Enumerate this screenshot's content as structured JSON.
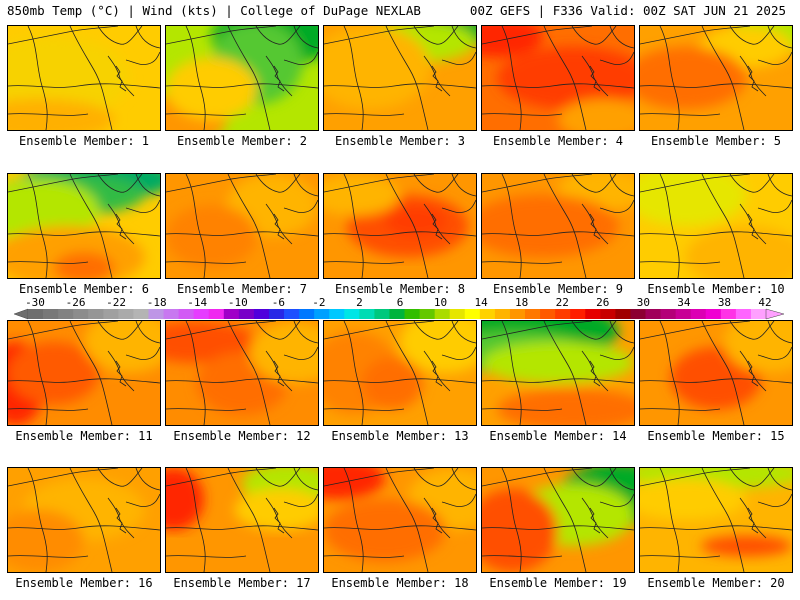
{
  "header": {
    "left": "850mb Temp (°C) | Wind (kts) | College of DuPage NEXLAB",
    "right": "00Z GEFS | F336 Valid: 00Z SAT JUN 21 2025"
  },
  "members": [
    {
      "label": "Ensemble Member: 1",
      "base": "#ffcc00",
      "blobs": [
        [
          "#f7d200",
          0.3,
          0.5,
          0.5,
          0.4
        ],
        [
          "#ffb000",
          0.2,
          0.9,
          0.5,
          0.2
        ]
      ]
    },
    {
      "label": "Ensemble Member: 2",
      "base": "#b4e600",
      "blobs": [
        [
          "#00aa28",
          0.7,
          0.1,
          0.4,
          0.3
        ],
        [
          "#55c832",
          0.6,
          0.35,
          0.3,
          0.4
        ],
        [
          "#ff9600",
          0.1,
          0.9,
          0.3,
          0.25
        ],
        [
          "#ffcc00",
          0.3,
          0.6,
          0.3,
          0.3
        ]
      ]
    },
    {
      "label": "Ensemble Member: 3",
      "base": "#ffa000",
      "blobs": [
        [
          "#00aa28",
          0.85,
          0.05,
          0.3,
          0.15
        ],
        [
          "#b4e600",
          0.6,
          0.15,
          0.4,
          0.2
        ],
        [
          "#ffb400",
          0.3,
          0.4,
          0.4,
          0.4
        ]
      ]
    },
    {
      "label": "Ensemble Member: 4",
      "base": "#ff6e00",
      "blobs": [
        [
          "#ff2800",
          0.1,
          0.1,
          0.3,
          0.2
        ],
        [
          "#ff3c00",
          0.6,
          0.5,
          0.5,
          0.3
        ],
        [
          "#ffa000",
          0.8,
          0.9,
          0.3,
          0.2
        ]
      ]
    },
    {
      "label": "Ensemble Member: 5",
      "base": "#ffa000",
      "blobs": [
        [
          "#b4e600",
          0.9,
          0.05,
          0.3,
          0.2
        ],
        [
          "#ffcc00",
          0.7,
          0.2,
          0.3,
          0.2
        ],
        [
          "#ff6e00",
          0.3,
          0.5,
          0.4,
          0.3
        ]
      ]
    },
    {
      "label": "Ensemble Member: 6",
      "base": "#ffcc00",
      "blobs": [
        [
          "#00aa64",
          0.6,
          0.05,
          0.5,
          0.2
        ],
        [
          "#33bb44",
          0.4,
          0.2,
          0.5,
          0.2
        ],
        [
          "#b4e600",
          0.2,
          0.35,
          0.4,
          0.3
        ],
        [
          "#ffa000",
          0.4,
          0.8,
          0.5,
          0.3
        ],
        [
          "#ff6e00",
          0.5,
          0.9,
          0.2,
          0.15
        ]
      ]
    },
    {
      "label": "Ensemble Member: 7",
      "base": "#ff9600",
      "blobs": [
        [
          "#ffb400",
          0.7,
          0.3,
          0.3,
          0.3
        ],
        [
          "#ff8200",
          0.3,
          0.6,
          0.3,
          0.3
        ]
      ]
    },
    {
      "label": "Ensemble Member: 8",
      "base": "#ff9600",
      "blobs": [
        [
          "#ff5000",
          0.55,
          0.5,
          0.4,
          0.3
        ],
        [
          "#ffb400",
          0.2,
          0.2,
          0.3,
          0.2
        ],
        [
          "#ff3c00",
          0.6,
          0.45,
          0.2,
          0.15
        ]
      ]
    },
    {
      "label": "Ensemble Member: 9",
      "base": "#ff9600",
      "blobs": [
        [
          "#ffb400",
          0.8,
          0.15,
          0.3,
          0.2
        ],
        [
          "#ff6e00",
          0.4,
          0.5,
          0.5,
          0.3
        ]
      ]
    },
    {
      "label": "Ensemble Member: 10",
      "base": "#ffcc00",
      "blobs": [
        [
          "#e6e600",
          0.3,
          0.2,
          0.4,
          0.3
        ],
        [
          "#ffb400",
          0.7,
          0.8,
          0.4,
          0.3
        ]
      ]
    },
    {
      "label": "Ensemble Member: 11",
      "base": "#ff8c00",
      "blobs": [
        [
          "#ff2800",
          0.05,
          0.6,
          0.2,
          0.4
        ],
        [
          "#ff5a00",
          0.3,
          0.5,
          0.3,
          0.3
        ],
        [
          "#ffb400",
          0.8,
          0.2,
          0.3,
          0.3
        ]
      ]
    },
    {
      "label": "Ensemble Member: 12",
      "base": "#ff8c00",
      "blobs": [
        [
          "#ff5000",
          0.2,
          0.2,
          0.4,
          0.2
        ],
        [
          "#ff6e00",
          0.5,
          0.6,
          0.3,
          0.3
        ],
        [
          "#ffb400",
          0.85,
          0.3,
          0.3,
          0.3
        ]
      ]
    },
    {
      "label": "Ensemble Member: 13",
      "base": "#ffa000",
      "blobs": [
        [
          "#ff8200",
          0.2,
          0.5,
          0.3,
          0.4
        ],
        [
          "#ff6e00",
          0.45,
          0.6,
          0.2,
          0.25
        ],
        [
          "#ffcc00",
          0.8,
          0.2,
          0.3,
          0.3
        ]
      ]
    },
    {
      "label": "Ensemble Member: 14",
      "base": "#ffa000",
      "blobs": [
        [
          "#00aa28",
          0.3,
          0.1,
          0.6,
          0.3
        ],
        [
          "#55c832",
          0.2,
          0.3,
          0.5,
          0.2
        ],
        [
          "#b4e600",
          0.5,
          0.4,
          0.5,
          0.2
        ],
        [
          "#ff6e00",
          0.6,
          0.85,
          0.5,
          0.2
        ]
      ]
    },
    {
      "label": "Ensemble Member: 15",
      "base": "#ff9600",
      "blobs": [
        [
          "#ff5000",
          0.5,
          0.55,
          0.3,
          0.3
        ],
        [
          "#ffb400",
          0.85,
          0.2,
          0.3,
          0.3
        ]
      ]
    },
    {
      "label": "Ensemble Member: 16",
      "base": "#ffa000",
      "blobs": [
        [
          "#ffb400",
          0.5,
          0.4,
          0.4,
          0.3
        ],
        [
          "#ff8c00",
          0.2,
          0.7,
          0.3,
          0.3
        ]
      ]
    },
    {
      "label": "Ensemble Member: 17",
      "base": "#ff9600",
      "blobs": [
        [
          "#ff2800",
          0.05,
          0.3,
          0.2,
          0.3
        ],
        [
          "#b4e600",
          0.8,
          0.15,
          0.3,
          0.2
        ],
        [
          "#ffcc00",
          0.75,
          0.4,
          0.3,
          0.2
        ]
      ]
    },
    {
      "label": "Ensemble Member: 18",
      "base": "#ff9600",
      "blobs": [
        [
          "#ff2800",
          0.1,
          0.1,
          0.3,
          0.2
        ],
        [
          "#ffb400",
          0.85,
          0.3,
          0.3,
          0.3
        ],
        [
          "#ff6e00",
          0.4,
          0.6,
          0.4,
          0.3
        ]
      ]
    },
    {
      "label": "Ensemble Member: 19",
      "base": "#ff9600",
      "blobs": [
        [
          "#00aa28",
          0.9,
          0.25,
          0.4,
          0.3
        ],
        [
          "#b4e600",
          0.6,
          0.45,
          0.4,
          0.3
        ],
        [
          "#ff5000",
          0.2,
          0.6,
          0.3,
          0.4
        ]
      ]
    },
    {
      "label": "Ensemble Member: 20",
      "base": "#ffb400",
      "blobs": [
        [
          "#b4e600",
          0.5,
          0.05,
          0.6,
          0.15
        ],
        [
          "#ff5000",
          0.7,
          0.75,
          0.3,
          0.1
        ],
        [
          "#ffcc00",
          0.3,
          0.3,
          0.4,
          0.2
        ]
      ]
    }
  ],
  "colorbar": {
    "labels": [
      "-30",
      "-26",
      "-22",
      "-18",
      "-14",
      "-10",
      "-6",
      "-2",
      "2",
      "6",
      "10",
      "14",
      "18",
      "22",
      "26",
      "30",
      "34",
      "38",
      "42"
    ],
    "colors": [
      "#6e6e6e",
      "#787878",
      "#828282",
      "#8c8c8c",
      "#969696",
      "#a0a0a0",
      "#aaaaaa",
      "#b4b4b4",
      "#be96e6",
      "#c878f0",
      "#d25af5",
      "#e63cff",
      "#f028f0",
      "#a000c8",
      "#7800c8",
      "#5000dc",
      "#2828e6",
      "#1e50ff",
      "#0078ff",
      "#00a0ff",
      "#00c8ff",
      "#00e6e6",
      "#00dcb4",
      "#00c87d",
      "#00b43c",
      "#32be00",
      "#64c800",
      "#aadc00",
      "#e6e600",
      "#ffff00",
      "#ffd200",
      "#ffb400",
      "#ff9600",
      "#ff7800",
      "#ff5a00",
      "#ff3c00",
      "#ff1e00",
      "#e60000",
      "#c80000",
      "#a00000",
      "#8c0032",
      "#a0005a",
      "#b40078",
      "#c80096",
      "#dc00b4",
      "#f000d2",
      "#ff32e6",
      "#ff64ff",
      "#ffa0ff"
    ]
  }
}
